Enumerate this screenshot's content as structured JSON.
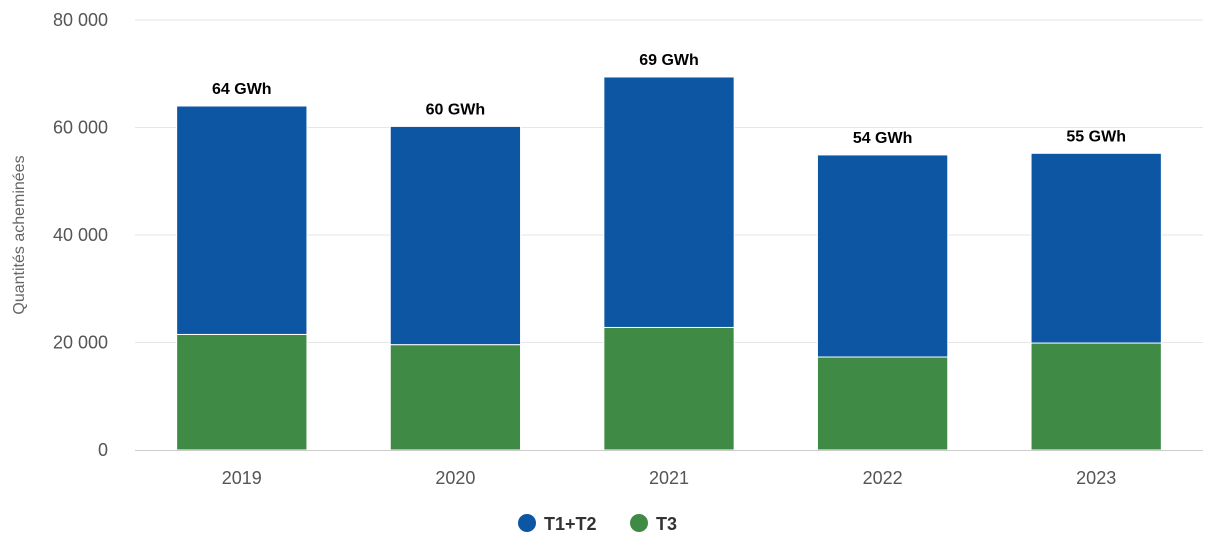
{
  "chart_data": {
    "type": "bar",
    "stacked": true,
    "categories": [
      "2019",
      "2020",
      "2021",
      "2022",
      "2023"
    ],
    "series": [
      {
        "name": "T3",
        "color": "#3f8b45",
        "values": [
          21500,
          19600,
          22800,
          17300,
          19900
        ]
      },
      {
        "name": "T1+T2",
        "color": "#0c56a3",
        "values": [
          42500,
          40600,
          46600,
          37600,
          35300
        ]
      }
    ],
    "totals": [
      64000,
      60200,
      69400,
      54900,
      55200
    ],
    "data_labels": [
      "64 GWh",
      "60 GWh",
      "69 GWh",
      "54 GWh",
      "55 GWh"
    ],
    "ylabel": "Quantités acheminées",
    "xlabel": "",
    "ylim": [
      0,
      80000
    ],
    "yticks": [
      0,
      20000,
      40000,
      60000,
      80000
    ],
    "ytick_labels": [
      "0",
      "20 000",
      "40 000",
      "60 000",
      "80 000"
    ],
    "grid": true,
    "legend_position": "bottom-center",
    "legend": [
      {
        "name": "T1+T2",
        "color": "#0c56a3"
      },
      {
        "name": "T3",
        "color": "#3f8b45"
      }
    ]
  }
}
